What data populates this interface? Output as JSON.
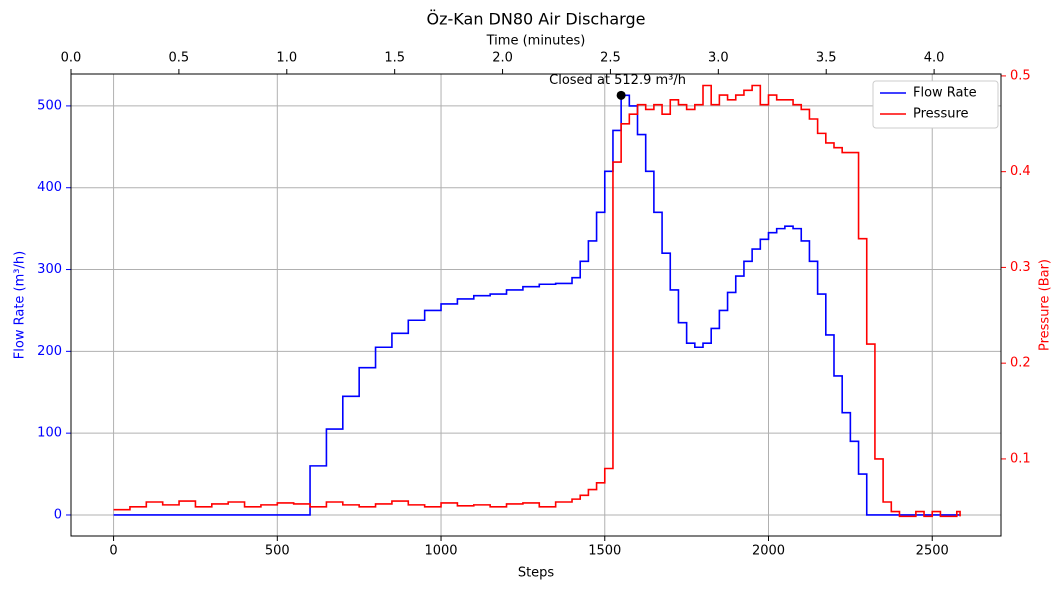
{
  "chart_data": {
    "type": "line",
    "title": "Öz-Kan DN80 Air Discharge",
    "xlabel": "Steps",
    "x2label": "Time (minutes)",
    "ylabel": "Flow Rate (m³/h)",
    "y2label": "Pressure (Bar)",
    "drawstyle": "steps",
    "xlim": [
      -130,
      2710
    ],
    "xticks": [
      0,
      500,
      1000,
      1500,
      2000,
      2500
    ],
    "x2lim": [
      0,
      4.31
    ],
    "x2ticks": [
      {
        "value": 0,
        "label": "0.0"
      },
      {
        "value": 0.5,
        "label": "0.5"
      },
      {
        "value": 1,
        "label": "1.0"
      },
      {
        "value": 1.5,
        "label": "1.5"
      },
      {
        "value": 2,
        "label": "2.0"
      },
      {
        "value": 2.5,
        "label": "2.5"
      },
      {
        "value": 3,
        "label": "3.0"
      },
      {
        "value": 3.5,
        "label": "3.5"
      },
      {
        "value": 4,
        "label": "4.0"
      }
    ],
    "ylim": [
      -25.7,
      539
    ],
    "yticks": [
      0,
      100,
      200,
      300,
      400,
      500
    ],
    "y2lim": [
      0.0195,
      0.502
    ],
    "y2ticks": [
      0.1,
      0.2,
      0.3,
      0.4,
      0.5
    ],
    "grid": true,
    "legend": "upper right",
    "x": [
      0,
      50,
      100,
      150,
      200,
      250,
      300,
      350,
      400,
      450,
      500,
      550,
      600,
      650,
      700,
      750,
      800,
      850,
      900,
      950,
      1000,
      1050,
      1100,
      1150,
      1200,
      1250,
      1300,
      1350,
      1400,
      1425,
      1450,
      1475,
      1500,
      1525,
      1550,
      1575,
      1600,
      1625,
      1650,
      1675,
      1700,
      1725,
      1750,
      1775,
      1800,
      1825,
      1850,
      1875,
      1900,
      1925,
      1950,
      1975,
      2000,
      2025,
      2050,
      2075,
      2100,
      2125,
      2150,
      2175,
      2200,
      2225,
      2250,
      2275,
      2300,
      2325,
      2350,
      2375,
      2400,
      2425,
      2450,
      2475,
      2500,
      2525,
      2550,
      2575,
      2585
    ],
    "series": [
      {
        "name": "Flow Rate",
        "color": "#0000ff",
        "axis": "y",
        "values": [
          0,
          0,
          0,
          0,
          0,
          0,
          0,
          0,
          0,
          0,
          0,
          0,
          60,
          105,
          145,
          180,
          205,
          222,
          238,
          250,
          258,
          264,
          268,
          270,
          275,
          279,
          282,
          283,
          290,
          310,
          335,
          370,
          420,
          470,
          512.9,
          500,
          465,
          420,
          370,
          320,
          275,
          235,
          210,
          205,
          210,
          228,
          250,
          272,
          292,
          310,
          325,
          337,
          345,
          350,
          353,
          350,
          335,
          310,
          270,
          220,
          170,
          125,
          90,
          50,
          0,
          0,
          0,
          0,
          0,
          0,
          0,
          0,
          0,
          0,
          0,
          0,
          0
        ]
      },
      {
        "name": "Pressure",
        "color": "#ff0000",
        "axis": "y2",
        "values": [
          0.047,
          0.05,
          0.055,
          0.052,
          0.056,
          0.05,
          0.053,
          0.055,
          0.05,
          0.052,
          0.054,
          0.053,
          0.05,
          0.055,
          0.052,
          0.05,
          0.053,
          0.056,
          0.052,
          0.05,
          0.054,
          0.051,
          0.052,
          0.05,
          0.053,
          0.054,
          0.05,
          0.055,
          0.058,
          0.062,
          0.068,
          0.075,
          0.09,
          0.41,
          0.45,
          0.46,
          0.47,
          0.465,
          0.47,
          0.46,
          0.475,
          0.47,
          0.465,
          0.47,
          0.49,
          0.47,
          0.48,
          0.475,
          0.48,
          0.485,
          0.49,
          0.47,
          0.48,
          0.475,
          0.475,
          0.47,
          0.465,
          0.455,
          0.44,
          0.43,
          0.425,
          0.42,
          0.42,
          0.33,
          0.22,
          0.1,
          0.055,
          0.045,
          0.04,
          0.04,
          0.045,
          0.04,
          0.045,
          0.04,
          0.04,
          0.045,
          0.04
        ]
      }
    ],
    "annotation": {
      "text": "Closed at 512.9 m³/h",
      "x": 1550,
      "y": 512.9
    }
  }
}
